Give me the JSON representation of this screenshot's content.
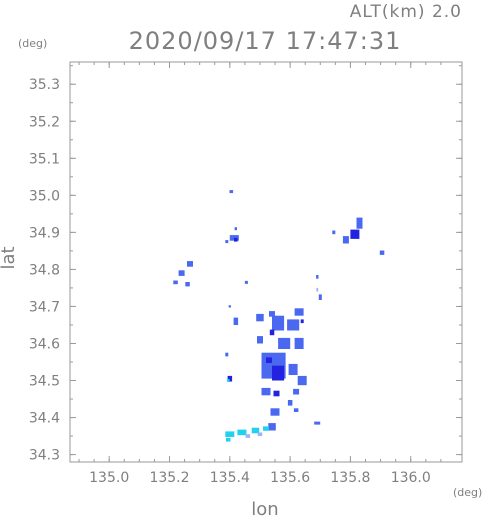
{
  "chart_data": {
    "type": "heatmap",
    "title": "2020/09/17 17:47:31",
    "subtitle": "ALT(km)  2.0",
    "xlabel": "lon",
    "ylabel": "lat",
    "x_unit": "(deg)",
    "y_unit": "(deg)",
    "xlim": [
      134.87,
      136.17
    ],
    "ylim": [
      34.28,
      35.36
    ],
    "xticks": [
      "135.0",
      "135.2",
      "135.4",
      "135.6",
      "135.8",
      "136.0"
    ],
    "yticks": [
      "34.3",
      "34.4",
      "34.5",
      "34.6",
      "34.7",
      "34.8",
      "34.9",
      "35.0",
      "35.1",
      "35.2",
      "35.3"
    ],
    "grid": false,
    "colors": {
      "strong": "#2222e0",
      "medium": "#4a68f0",
      "weak": "#9fb3f8",
      "cyan": "#22d0f0",
      "frame": "#9a9a9a"
    },
    "cells": [
      {
        "lon": 135.405,
        "lat": 35.01,
        "w": 0.012,
        "h": 0.008,
        "level": "medium"
      },
      {
        "lon": 135.42,
        "lat": 34.91,
        "w": 0.008,
        "h": 0.008,
        "level": "medium"
      },
      {
        "lon": 135.39,
        "lat": 34.875,
        "w": 0.01,
        "h": 0.008,
        "level": "medium"
      },
      {
        "lon": 135.415,
        "lat": 34.885,
        "w": 0.03,
        "h": 0.015,
        "level": "medium"
      },
      {
        "lon": 135.42,
        "lat": 34.88,
        "w": 0.012,
        "h": 0.01,
        "level": "strong"
      },
      {
        "lon": 135.268,
        "lat": 34.815,
        "w": 0.02,
        "h": 0.015,
        "level": "medium"
      },
      {
        "lon": 135.24,
        "lat": 34.79,
        "w": 0.02,
        "h": 0.015,
        "level": "medium"
      },
      {
        "lon": 135.22,
        "lat": 34.765,
        "w": 0.015,
        "h": 0.01,
        "level": "medium"
      },
      {
        "lon": 135.26,
        "lat": 34.76,
        "w": 0.015,
        "h": 0.012,
        "level": "medium"
      },
      {
        "lon": 135.455,
        "lat": 34.765,
        "w": 0.01,
        "h": 0.008,
        "level": "medium"
      },
      {
        "lon": 135.83,
        "lat": 34.925,
        "w": 0.02,
        "h": 0.03,
        "level": "medium"
      },
      {
        "lon": 135.815,
        "lat": 34.895,
        "w": 0.03,
        "h": 0.025,
        "level": "strong"
      },
      {
        "lon": 135.785,
        "lat": 34.88,
        "w": 0.02,
        "h": 0.02,
        "level": "medium"
      },
      {
        "lon": 135.745,
        "lat": 34.9,
        "w": 0.01,
        "h": 0.01,
        "level": "medium"
      },
      {
        "lon": 135.905,
        "lat": 34.845,
        "w": 0.015,
        "h": 0.012,
        "level": "medium"
      },
      {
        "lon": 135.69,
        "lat": 34.78,
        "w": 0.008,
        "h": 0.01,
        "level": "medium"
      },
      {
        "lon": 135.7,
        "lat": 34.725,
        "w": 0.01,
        "h": 0.015,
        "level": "medium"
      },
      {
        "lon": 135.69,
        "lat": 34.745,
        "w": 0.006,
        "h": 0.01,
        "level": "weak"
      },
      {
        "lon": 135.4,
        "lat": 34.7,
        "w": 0.008,
        "h": 0.006,
        "level": "medium"
      },
      {
        "lon": 135.42,
        "lat": 34.66,
        "w": 0.015,
        "h": 0.02,
        "level": "medium"
      },
      {
        "lon": 135.39,
        "lat": 34.57,
        "w": 0.01,
        "h": 0.01,
        "level": "medium"
      },
      {
        "lon": 135.5,
        "lat": 34.67,
        "w": 0.025,
        "h": 0.02,
        "level": "medium"
      },
      {
        "lon": 135.54,
        "lat": 34.68,
        "w": 0.02,
        "h": 0.015,
        "level": "medium"
      },
      {
        "lon": 135.56,
        "lat": 34.655,
        "w": 0.04,
        "h": 0.04,
        "level": "medium"
      },
      {
        "lon": 135.54,
        "lat": 34.63,
        "w": 0.015,
        "h": 0.015,
        "level": "strong"
      },
      {
        "lon": 135.63,
        "lat": 34.685,
        "w": 0.03,
        "h": 0.02,
        "level": "medium"
      },
      {
        "lon": 135.61,
        "lat": 34.65,
        "w": 0.04,
        "h": 0.03,
        "level": "medium"
      },
      {
        "lon": 135.64,
        "lat": 34.66,
        "w": 0.01,
        "h": 0.01,
        "level": "strong"
      },
      {
        "lon": 135.5,
        "lat": 34.61,
        "w": 0.02,
        "h": 0.02,
        "level": "medium"
      },
      {
        "lon": 135.58,
        "lat": 34.6,
        "w": 0.04,
        "h": 0.03,
        "level": "medium"
      },
      {
        "lon": 135.63,
        "lat": 34.6,
        "w": 0.03,
        "h": 0.03,
        "level": "medium"
      },
      {
        "lon": 135.545,
        "lat": 34.54,
        "w": 0.08,
        "h": 0.07,
        "level": "medium"
      },
      {
        "lon": 135.56,
        "lat": 34.52,
        "w": 0.04,
        "h": 0.04,
        "level": "strong"
      },
      {
        "lon": 135.53,
        "lat": 34.555,
        "w": 0.02,
        "h": 0.015,
        "level": "strong"
      },
      {
        "lon": 135.61,
        "lat": 34.53,
        "w": 0.03,
        "h": 0.03,
        "level": "medium"
      },
      {
        "lon": 135.64,
        "lat": 34.5,
        "w": 0.03,
        "h": 0.025,
        "level": "medium"
      },
      {
        "lon": 135.62,
        "lat": 34.47,
        "w": 0.02,
        "h": 0.015,
        "level": "medium"
      },
      {
        "lon": 135.52,
        "lat": 34.47,
        "w": 0.03,
        "h": 0.02,
        "level": "medium"
      },
      {
        "lon": 135.555,
        "lat": 34.465,
        "w": 0.02,
        "h": 0.015,
        "level": "strong"
      },
      {
        "lon": 135.6,
        "lat": 34.44,
        "w": 0.015,
        "h": 0.015,
        "level": "medium"
      },
      {
        "lon": 135.55,
        "lat": 34.415,
        "w": 0.03,
        "h": 0.02,
        "level": "medium"
      },
      {
        "lon": 135.62,
        "lat": 34.42,
        "w": 0.015,
        "h": 0.01,
        "level": "medium"
      },
      {
        "lon": 135.4,
        "lat": 34.505,
        "w": 0.015,
        "h": 0.015,
        "level": "strong"
      },
      {
        "lon": 135.395,
        "lat": 34.5,
        "w": 0.008,
        "h": 0.008,
        "level": "cyan"
      },
      {
        "lon": 135.69,
        "lat": 34.385,
        "w": 0.02,
        "h": 0.008,
        "level": "medium"
      },
      {
        "lon": 135.54,
        "lat": 34.375,
        "w": 0.025,
        "h": 0.02,
        "level": "medium"
      },
      {
        "lon": 135.4,
        "lat": 34.355,
        "w": 0.03,
        "h": 0.015,
        "level": "cyan"
      },
      {
        "lon": 135.44,
        "lat": 34.36,
        "w": 0.03,
        "h": 0.015,
        "level": "cyan"
      },
      {
        "lon": 135.485,
        "lat": 34.365,
        "w": 0.025,
        "h": 0.015,
        "level": "cyan"
      },
      {
        "lon": 135.52,
        "lat": 34.37,
        "w": 0.02,
        "h": 0.012,
        "level": "cyan"
      },
      {
        "lon": 135.395,
        "lat": 34.34,
        "w": 0.015,
        "h": 0.01,
        "level": "cyan"
      },
      {
        "lon": 135.46,
        "lat": 34.35,
        "w": 0.015,
        "h": 0.01,
        "level": "weak"
      },
      {
        "lon": 135.5,
        "lat": 34.355,
        "w": 0.015,
        "h": 0.01,
        "level": "weak"
      }
    ]
  }
}
